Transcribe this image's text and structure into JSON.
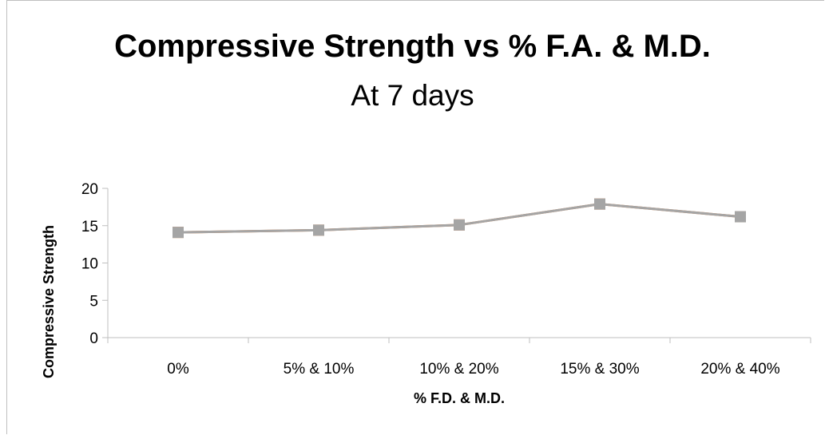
{
  "chart_data": {
    "type": "line",
    "title": "Compressive Strength vs % F.A. & M.D.",
    "subtitle": "At 7 days",
    "xlabel": "% F.D. & M.D.",
    "ylabel": "Compressive Strength",
    "categories": [
      "0%",
      "5% & 10%",
      "10% & 20%",
      "15% & 30%",
      "20% & 40%"
    ],
    "ylim": [
      0,
      20
    ],
    "yticks": [
      0,
      5,
      10,
      15,
      20
    ],
    "grid": false,
    "legend": "none",
    "series": [
      {
        "values": [
          14.1,
          14.4,
          15.1,
          17.9,
          16.2
        ],
        "color": "#ed7d31",
        "marker": "square"
      },
      {
        "values": [
          14.1,
          14.4,
          15.1,
          17.9,
          16.2
        ],
        "color": "#a5a5a5",
        "marker": "square"
      }
    ]
  }
}
